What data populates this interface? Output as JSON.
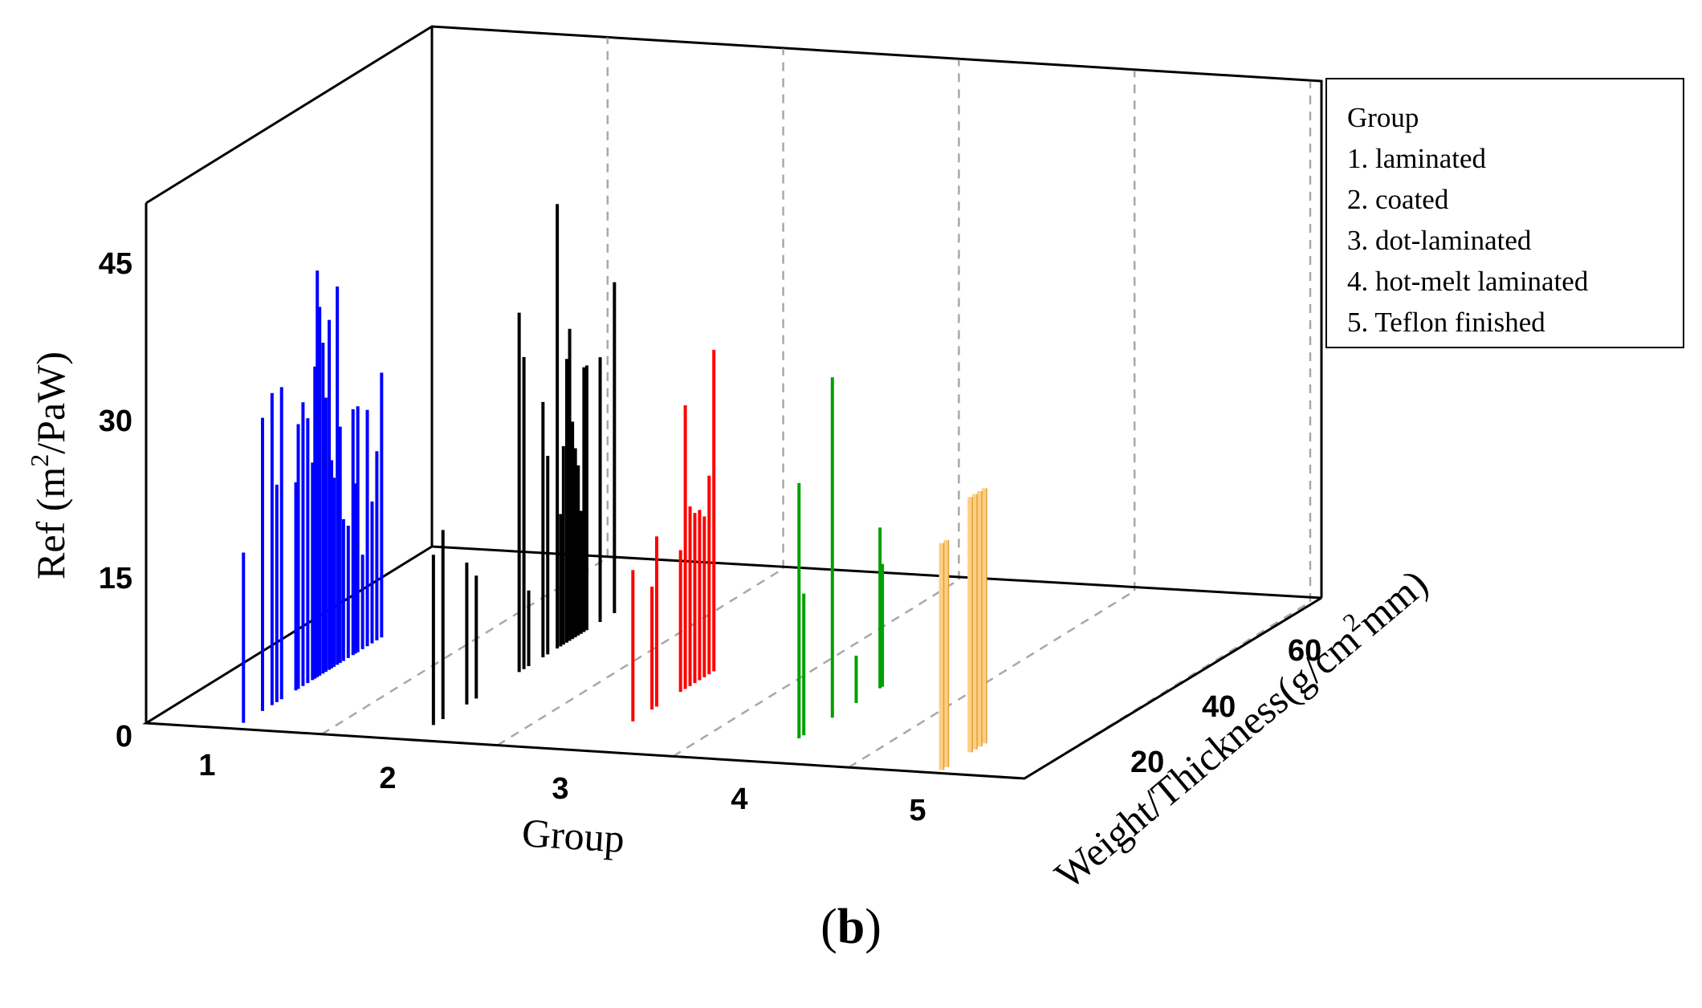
{
  "chart_data": {
    "type": "3d-bar",
    "title": "",
    "zlabel": "Ref (m2/PaW)",
    "zlabel_main": "Ref (m",
    "zlabel_sup": "2",
    "zlabel_tail": "/PaW)",
    "zticks": [
      "0",
      "15",
      "30",
      "45"
    ],
    "zlim": [
      0,
      55
    ],
    "xlabel": "Group",
    "xticks": [
      "1",
      "2",
      "3",
      "4",
      "5"
    ],
    "ylabel": "Weight/Thickness(g/cm2mm)",
    "ylabel_main": "Weight/Thickness(g/cm",
    "ylabel_sup": "2",
    "ylabel_tail": "mm)",
    "yticks": [
      "20",
      "40",
      "60"
    ],
    "ylim": [
      10,
      70
    ],
    "legend": {
      "title": "Group",
      "entries": [
        "1. laminated",
        "2. coated",
        "3. dot-laminated",
        "4. hot-melt laminated",
        "5. Teflon finished"
      ]
    },
    "caption_open": "(",
    "caption_letter": "b",
    "caption_close": ")",
    "series": [
      {
        "name": "1. laminated",
        "color": "#0000ff",
        "points": [
          {
            "w": 12,
            "ref": 18
          },
          {
            "w": 16,
            "ref": 31
          },
          {
            "w": 18,
            "ref": 33
          },
          {
            "w": 19,
            "ref": 23
          },
          {
            "w": 20,
            "ref": 33
          },
          {
            "w": 23,
            "ref": 22
          },
          {
            "w": 23.5,
            "ref": 28
          },
          {
            "w": 24.5,
            "ref": 30
          },
          {
            "w": 25.5,
            "ref": 28
          },
          {
            "w": 26.5,
            "ref": 23
          },
          {
            "w": 27,
            "ref": 33
          },
          {
            "w": 27.5,
            "ref": 43
          },
          {
            "w": 28,
            "ref": 39
          },
          {
            "w": 28.7,
            "ref": 35
          },
          {
            "w": 29.3,
            "ref": 29
          },
          {
            "w": 30,
            "ref": 37
          },
          {
            "w": 30.5,
            "ref": 22
          },
          {
            "w": 31,
            "ref": 20
          },
          {
            "w": 31.7,
            "ref": 40
          },
          {
            "w": 32.3,
            "ref": 25
          },
          {
            "w": 33,
            "ref": 15
          },
          {
            "w": 34,
            "ref": 14
          },
          {
            "w": 35,
            "ref": 26
          },
          {
            "w": 35.5,
            "ref": 18
          },
          {
            "w": 36,
            "ref": 26
          },
          {
            "w": 37,
            "ref": 10
          },
          {
            "w": 38,
            "ref": 25
          },
          {
            "w": 39,
            "ref": 15
          },
          {
            "w": 40,
            "ref": 20
          },
          {
            "w": 41,
            "ref": 28
          }
        ]
      },
      {
        "name": "2. coated",
        "color": "#000000",
        "points": [
          {
            "w": 15,
            "ref": 18
          },
          {
            "w": 17,
            "ref": 20
          },
          {
            "w": 22,
            "ref": 15
          },
          {
            "w": 24,
            "ref": 13
          },
          {
            "w": 33,
            "ref": 38
          },
          {
            "w": 34,
            "ref": 33
          },
          {
            "w": 35,
            "ref": 8
          },
          {
            "w": 38,
            "ref": 27
          },
          {
            "w": 39,
            "ref": 21
          },
          {
            "w": 41,
            "ref": 47
          },
          {
            "w": 41.7,
            "ref": 14
          },
          {
            "w": 42.3,
            "ref": 21
          },
          {
            "w": 43,
            "ref": 30
          },
          {
            "w": 43.6,
            "ref": 33
          },
          {
            "w": 44.2,
            "ref": 23
          },
          {
            "w": 44.8,
            "ref": 20
          },
          {
            "w": 45.4,
            "ref": 18
          },
          {
            "w": 46,
            "ref": 13
          },
          {
            "w": 46.6,
            "ref": 28
          },
          {
            "w": 47.2,
            "ref": 28
          },
          {
            "w": 50,
            "ref": 28
          },
          {
            "w": 53,
            "ref": 35
          }
        ]
      },
      {
        "name": "3. dot-laminated",
        "color": "#ff0000",
        "points": [
          {
            "w": 20,
            "ref": 16
          },
          {
            "w": 24,
            "ref": 13
          },
          {
            "w": 25,
            "ref": 18
          },
          {
            "w": 30,
            "ref": 15
          },
          {
            "w": 31,
            "ref": 30
          },
          {
            "w": 32,
            "ref": 19
          },
          {
            "w": 33,
            "ref": 18
          },
          {
            "w": 34,
            "ref": 18
          },
          {
            "w": 35,
            "ref": 17
          },
          {
            "w": 36,
            "ref": 21
          },
          {
            "w": 37,
            "ref": 34
          }
        ]
      },
      {
        "name": "4. hot-melt laminated",
        "color": "#00a000",
        "points": [
          {
            "w": 18,
            "ref": 27
          },
          {
            "w": 19,
            "ref": 15
          },
          {
            "w": 25,
            "ref": 36
          },
          {
            "w": 30,
            "ref": 5
          },
          {
            "w": 35,
            "ref": 17
          },
          {
            "w": 35.5,
            "ref": 13
          }
        ]
      },
      {
        "name": "5. Teflon finished",
        "color": "#ffcf80",
        "points": [
          {
            "w": 11,
            "ref": 24
          },
          {
            "w": 12,
            "ref": 24
          },
          {
            "w": 17,
            "ref": 27
          },
          {
            "w": 18,
            "ref": 27
          },
          {
            "w": 19,
            "ref": 27
          },
          {
            "w": 20,
            "ref": 27
          }
        ]
      }
    ]
  }
}
